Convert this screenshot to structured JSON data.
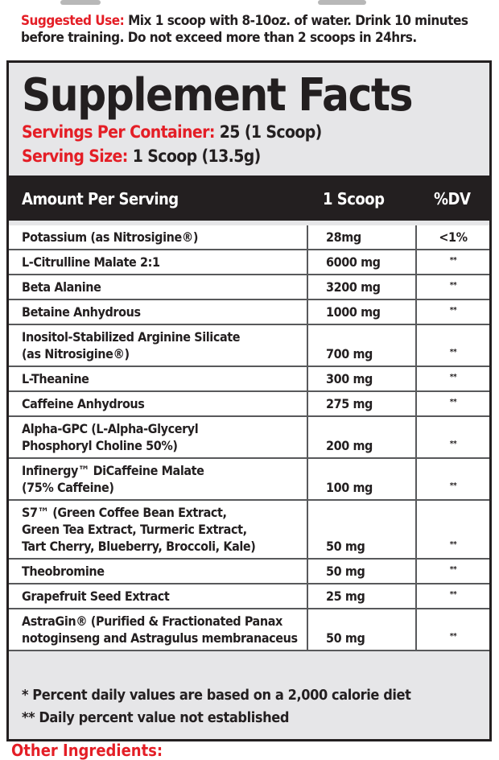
{
  "suggested_use": {
    "label": "Suggested Use:",
    "text_line1": " Mix 1 scoop with 8-10oz. of water. Drink 10 minutes",
    "text_line2": "before training. Do not exceed more than 2 scoops in 24hrs."
  },
  "facts": {
    "title": "Supplement Facts",
    "servings_label": "Servings Per Container:",
    "servings_value": " 25 (1 Scoop)",
    "size_label": "Serving Size:",
    "size_value": " 1 Scoop (13.5g)",
    "header": {
      "col1": "Amount Per Serving",
      "col2": "1 Scoop",
      "col3": "%DV"
    },
    "rows": [
      {
        "name": "Potassium (as Nitrosigine®)",
        "amount": "28mg",
        "dv": "<1%"
      },
      {
        "name": "L-Citrulline Malate 2:1",
        "amount": "6000 mg",
        "dv": "**"
      },
      {
        "name": "Beta Alanine",
        "amount": "3200 mg",
        "dv": "**"
      },
      {
        "name": "Betaine Anhydrous",
        "amount": "1000 mg",
        "dv": "**"
      },
      {
        "name": "Inositol-Stabilized Arginine Silicate\n(as Nitrosigine®)",
        "amount": "700 mg",
        "dv": "**"
      },
      {
        "name": "L-Theanine",
        "amount": "300 mg",
        "dv": "**"
      },
      {
        "name": "Caffeine Anhydrous",
        "amount": "275 mg",
        "dv": "**"
      },
      {
        "name": "Alpha-GPC (L-Alpha-Glyceryl\nPhosphoryl Choline 50%)",
        "amount": "200 mg",
        "dv": "**"
      },
      {
        "name": "Infinergy™ DiCaffeine Malate\n(75% Caffeine)",
        "amount": "100 mg",
        "dv": "**"
      },
      {
        "name": "S7™ (Green Coffee Bean Extract,\nGreen Tea Extract, Turmeric Extract,\nTart Cherry, Blueberry, Broccoli, Kale)",
        "amount": "50 mg",
        "dv": "**"
      },
      {
        "name": "Theobromine",
        "amount": "50 mg",
        "dv": "**"
      },
      {
        "name": "Grapefruit Seed Extract",
        "amount": "25 mg",
        "dv": "**"
      },
      {
        "name": "AstraGin® (Purified & Fractionated Panax\nnotoginseng and Astragulus membranaceus",
        "amount": "50 mg",
        "dv": "**"
      }
    ],
    "footnote1": "* Percent daily values are based on a 2,000 calorie diet",
    "footnote2": "** Daily percent value not established"
  },
  "other_ingredients_label": "Other Ingredients:"
}
